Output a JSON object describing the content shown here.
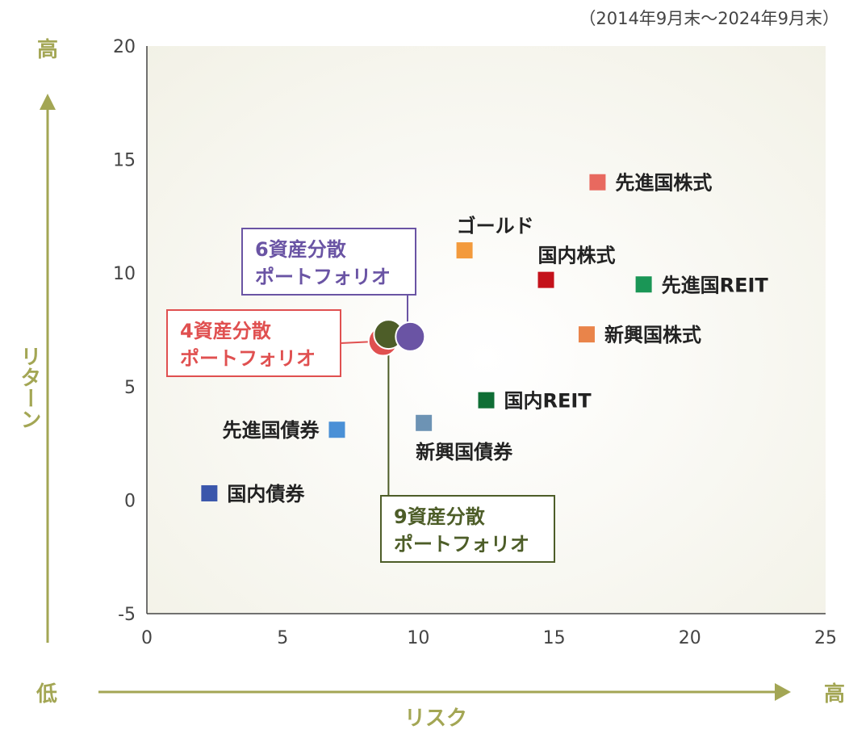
{
  "period": "（2014年9月末～2024年9月末）",
  "y_axis": {
    "label": "リターン",
    "high": "高"
  },
  "x_axis": {
    "label": "リスク",
    "low": "低",
    "high": "高"
  },
  "colors": {
    "axis_accent": "#a3a654"
  },
  "chart_data": {
    "type": "scatter",
    "xlabel": "リスク",
    "ylabel": "リターン",
    "xlim": [
      0,
      25
    ],
    "ylim": [
      -5,
      20
    ],
    "xticks": [
      "0",
      "5",
      "10",
      "15",
      "20",
      "25"
    ],
    "yticks": [
      "-5",
      "0",
      "5",
      "10",
      "15",
      "20"
    ],
    "grid": false,
    "assets": [
      {
        "name": "先進国株式",
        "x": 16.6,
        "y": 14.0,
        "color": "#e8695f",
        "label_pos": "right"
      },
      {
        "name": "ゴールド",
        "x": 11.7,
        "y": 11.0,
        "color": "#f39a3c",
        "label_pos": "above"
      },
      {
        "name": "国内株式",
        "x": 14.7,
        "y": 9.7,
        "color": "#c4121b",
        "label_pos": "above"
      },
      {
        "name": "先進国REIT",
        "x": 18.3,
        "y": 9.5,
        "color": "#1a9656",
        "label_pos": "right"
      },
      {
        "name": "新興国株式",
        "x": 16.2,
        "y": 7.3,
        "color": "#e9844a",
        "label_pos": "right"
      },
      {
        "name": "国内REIT",
        "x": 12.5,
        "y": 4.4,
        "color": "#0f6e35",
        "label_pos": "right"
      },
      {
        "name": "新興国債券",
        "x": 10.2,
        "y": 3.4,
        "color": "#6d93b4",
        "label_pos": "below"
      },
      {
        "name": "先進国債券",
        "x": 7.0,
        "y": 3.1,
        "color": "#4a90d6",
        "label_pos": "left"
      },
      {
        "name": "国内債券",
        "x": 2.3,
        "y": 0.3,
        "color": "#3a56ab",
        "label_pos": "right"
      }
    ],
    "portfolios": [
      {
        "name": "4資産分散ポートフォリオ",
        "line1": "4資産分散",
        "line2": "ポートフォリオ",
        "x": 8.7,
        "y": 7.0,
        "color": "#e05050"
      },
      {
        "name": "9資産分散ポートフォリオ",
        "line1": "9資産分散",
        "line2": "ポートフォリオ",
        "x": 8.9,
        "y": 7.3,
        "color": "#4d5d28"
      },
      {
        "name": "6資産分散ポートフォリオ",
        "line1": "6資産分散",
        "line2": "ポートフォリオ",
        "x": 9.7,
        "y": 7.2,
        "color": "#6a54a4"
      }
    ]
  }
}
